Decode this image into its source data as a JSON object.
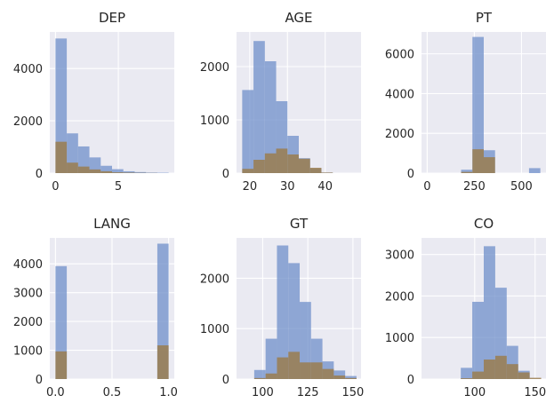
{
  "chart_data": [
    {
      "type": "histogram",
      "title": "DEP",
      "xlim": [
        -0.45,
        9.45
      ],
      "ylim": [
        0,
        5400
      ],
      "xticks": [
        0,
        5
      ],
      "yticks": [
        0,
        2000,
        4000
      ],
      "bin_edges": [
        0,
        0.9,
        1.8,
        2.7,
        3.6,
        4.5,
        5.4,
        6.3,
        7.2,
        8.1,
        9.0
      ],
      "series": [
        {
          "color": "#6f8fc9",
          "values": [
            5150,
            1520,
            1020,
            600,
            280,
            150,
            70,
            40,
            20,
            15
          ]
        },
        {
          "color": "#9a7d4f",
          "values": [
            1200,
            400,
            250,
            140,
            70,
            30,
            20,
            10,
            5,
            0
          ]
        }
      ]
    },
    {
      "type": "histogram",
      "title": "AGE",
      "xlim": [
        16.5,
        49.5
      ],
      "ylim": [
        0,
        2650
      ],
      "xticks": [
        20,
        30,
        40
      ],
      "yticks": [
        0,
        1000,
        2000
      ],
      "bin_edges": [
        18,
        21,
        24,
        27,
        30,
        33,
        36,
        39,
        42,
        45,
        48
      ],
      "series": [
        {
          "color": "#6f8fc9",
          "values": [
            1560,
            2480,
            2100,
            1350,
            700,
            280,
            80,
            10,
            0,
            0
          ]
        },
        {
          "color": "#9a7d4f",
          "values": [
            80,
            250,
            370,
            460,
            350,
            270,
            100,
            10,
            0,
            0
          ]
        }
      ]
    },
    {
      "type": "histogram",
      "title": "PT",
      "xlim": [
        -30,
        630
      ],
      "ylim": [
        0,
        7100
      ],
      "xticks": [
        0,
        250,
        500
      ],
      "yticks": [
        0,
        2000,
        4000,
        6000
      ],
      "bin_edges": [
        0,
        60,
        120,
        180,
        240,
        300,
        360,
        420,
        480,
        540,
        600
      ],
      "series": [
        {
          "color": "#6f8fc9",
          "values": [
            0,
            0,
            0,
            170,
            6850,
            1150,
            0,
            0,
            0,
            250
          ]
        },
        {
          "color": "#9a7d4f",
          "values": [
            0,
            0,
            0,
            60,
            1200,
            800,
            0,
            0,
            0,
            0
          ]
        }
      ]
    },
    {
      "type": "histogram",
      "title": "LANG",
      "xlim": [
        -0.05,
        1.05
      ],
      "ylim": [
        0,
        4900
      ],
      "xticks": [
        0.0,
        0.5,
        1.0
      ],
      "yticks": [
        0,
        1000,
        2000,
        3000,
        4000
      ],
      "bin_edges": [
        0,
        0.1,
        0.2,
        0.3,
        0.4,
        0.5,
        0.6,
        0.7,
        0.8,
        0.9,
        1.0
      ],
      "series": [
        {
          "color": "#6f8fc9",
          "values": [
            3920,
            0,
            0,
            0,
            0,
            0,
            0,
            0,
            0,
            4700
          ]
        },
        {
          "color": "#9a7d4f",
          "values": [
            960,
            0,
            0,
            0,
            0,
            0,
            0,
            0,
            0,
            1170
          ]
        }
      ]
    },
    {
      "type": "histogram",
      "title": "GT",
      "xlim": [
        85.5,
        154.5
      ],
      "ylim": [
        0,
        2800
      ],
      "xticks": [
        100,
        125,
        150
      ],
      "yticks": [
        0,
        1000,
        2000
      ],
      "bin_edges": [
        89,
        95.3,
        101.6,
        107.9,
        114.2,
        120.5,
        126.8,
        133.1,
        139.4,
        145.7,
        152
      ],
      "series": [
        {
          "color": "#6f8fc9",
          "values": [
            0,
            180,
            800,
            2650,
            2300,
            1530,
            800,
            350,
            170,
            60
          ]
        },
        {
          "color": "#9a7d4f",
          "values": [
            0,
            20,
            110,
            430,
            540,
            330,
            330,
            200,
            70,
            20
          ]
        }
      ]
    },
    {
      "type": "histogram",
      "title": "CO",
      "xlim": [
        56,
        159
      ],
      "ylim": [
        0,
        3400
      ],
      "xticks": [
        100,
        150
      ],
      "yticks": [
        0,
        1000,
        2000,
        3000
      ],
      "bin_edges": [
        60,
        69.5,
        79,
        88.5,
        98,
        107.5,
        117,
        126.5,
        136,
        145.5,
        155
      ],
      "series": [
        {
          "color": "#6f8fc9",
          "values": [
            0,
            0,
            0,
            270,
            1860,
            3200,
            2200,
            800,
            200,
            0
          ]
        },
        {
          "color": "#9a7d4f",
          "values": [
            0,
            0,
            0,
            20,
            180,
            470,
            560,
            360,
            160,
            30
          ]
        }
      ]
    }
  ]
}
